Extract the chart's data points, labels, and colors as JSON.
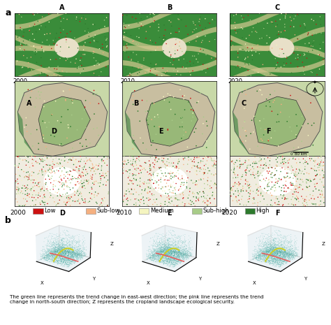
{
  "panel_a_label": "a",
  "panel_b_label": "b",
  "years": [
    "2000",
    "2010",
    "2020"
  ],
  "top_labels": [
    "A",
    "B",
    "C"
  ],
  "bottom_labels": [
    "D",
    "E",
    "F"
  ],
  "legend_items": [
    {
      "label": "Low",
      "color": "#cc1111"
    },
    {
      "label": "Sub-low",
      "color": "#f5b080"
    },
    {
      "label": "Medium",
      "color": "#f5f5c0"
    },
    {
      "label": "Sub-high",
      "color": "#a8cc88"
    },
    {
      "label": "High",
      "color": "#2d7a2d"
    }
  ],
  "caption": "The green line represents the trend change in east-west direction; the pink line represents the trend\nchange in north-south direction; Z represents the cropland landscape ecological security.",
  "background_color": "#ffffff",
  "top_map_main": "#3a8c3a",
  "top_map_stripe": "#d4c890",
  "top_map_center": "#e8e0c8",
  "mid_map_bg": "#c8d8a8",
  "mid_map_body": "#c8bea0",
  "mid_map_inner": "#98b878",
  "bot_map_bg": "#f0ece0",
  "bot_map_center": "#ffffff",
  "teal_color": "#40aaa0",
  "yellow_line": "#d0d020",
  "pink_line": "#e86060",
  "grid_color": "#cccccc",
  "pane_color": "#dde8ee"
}
